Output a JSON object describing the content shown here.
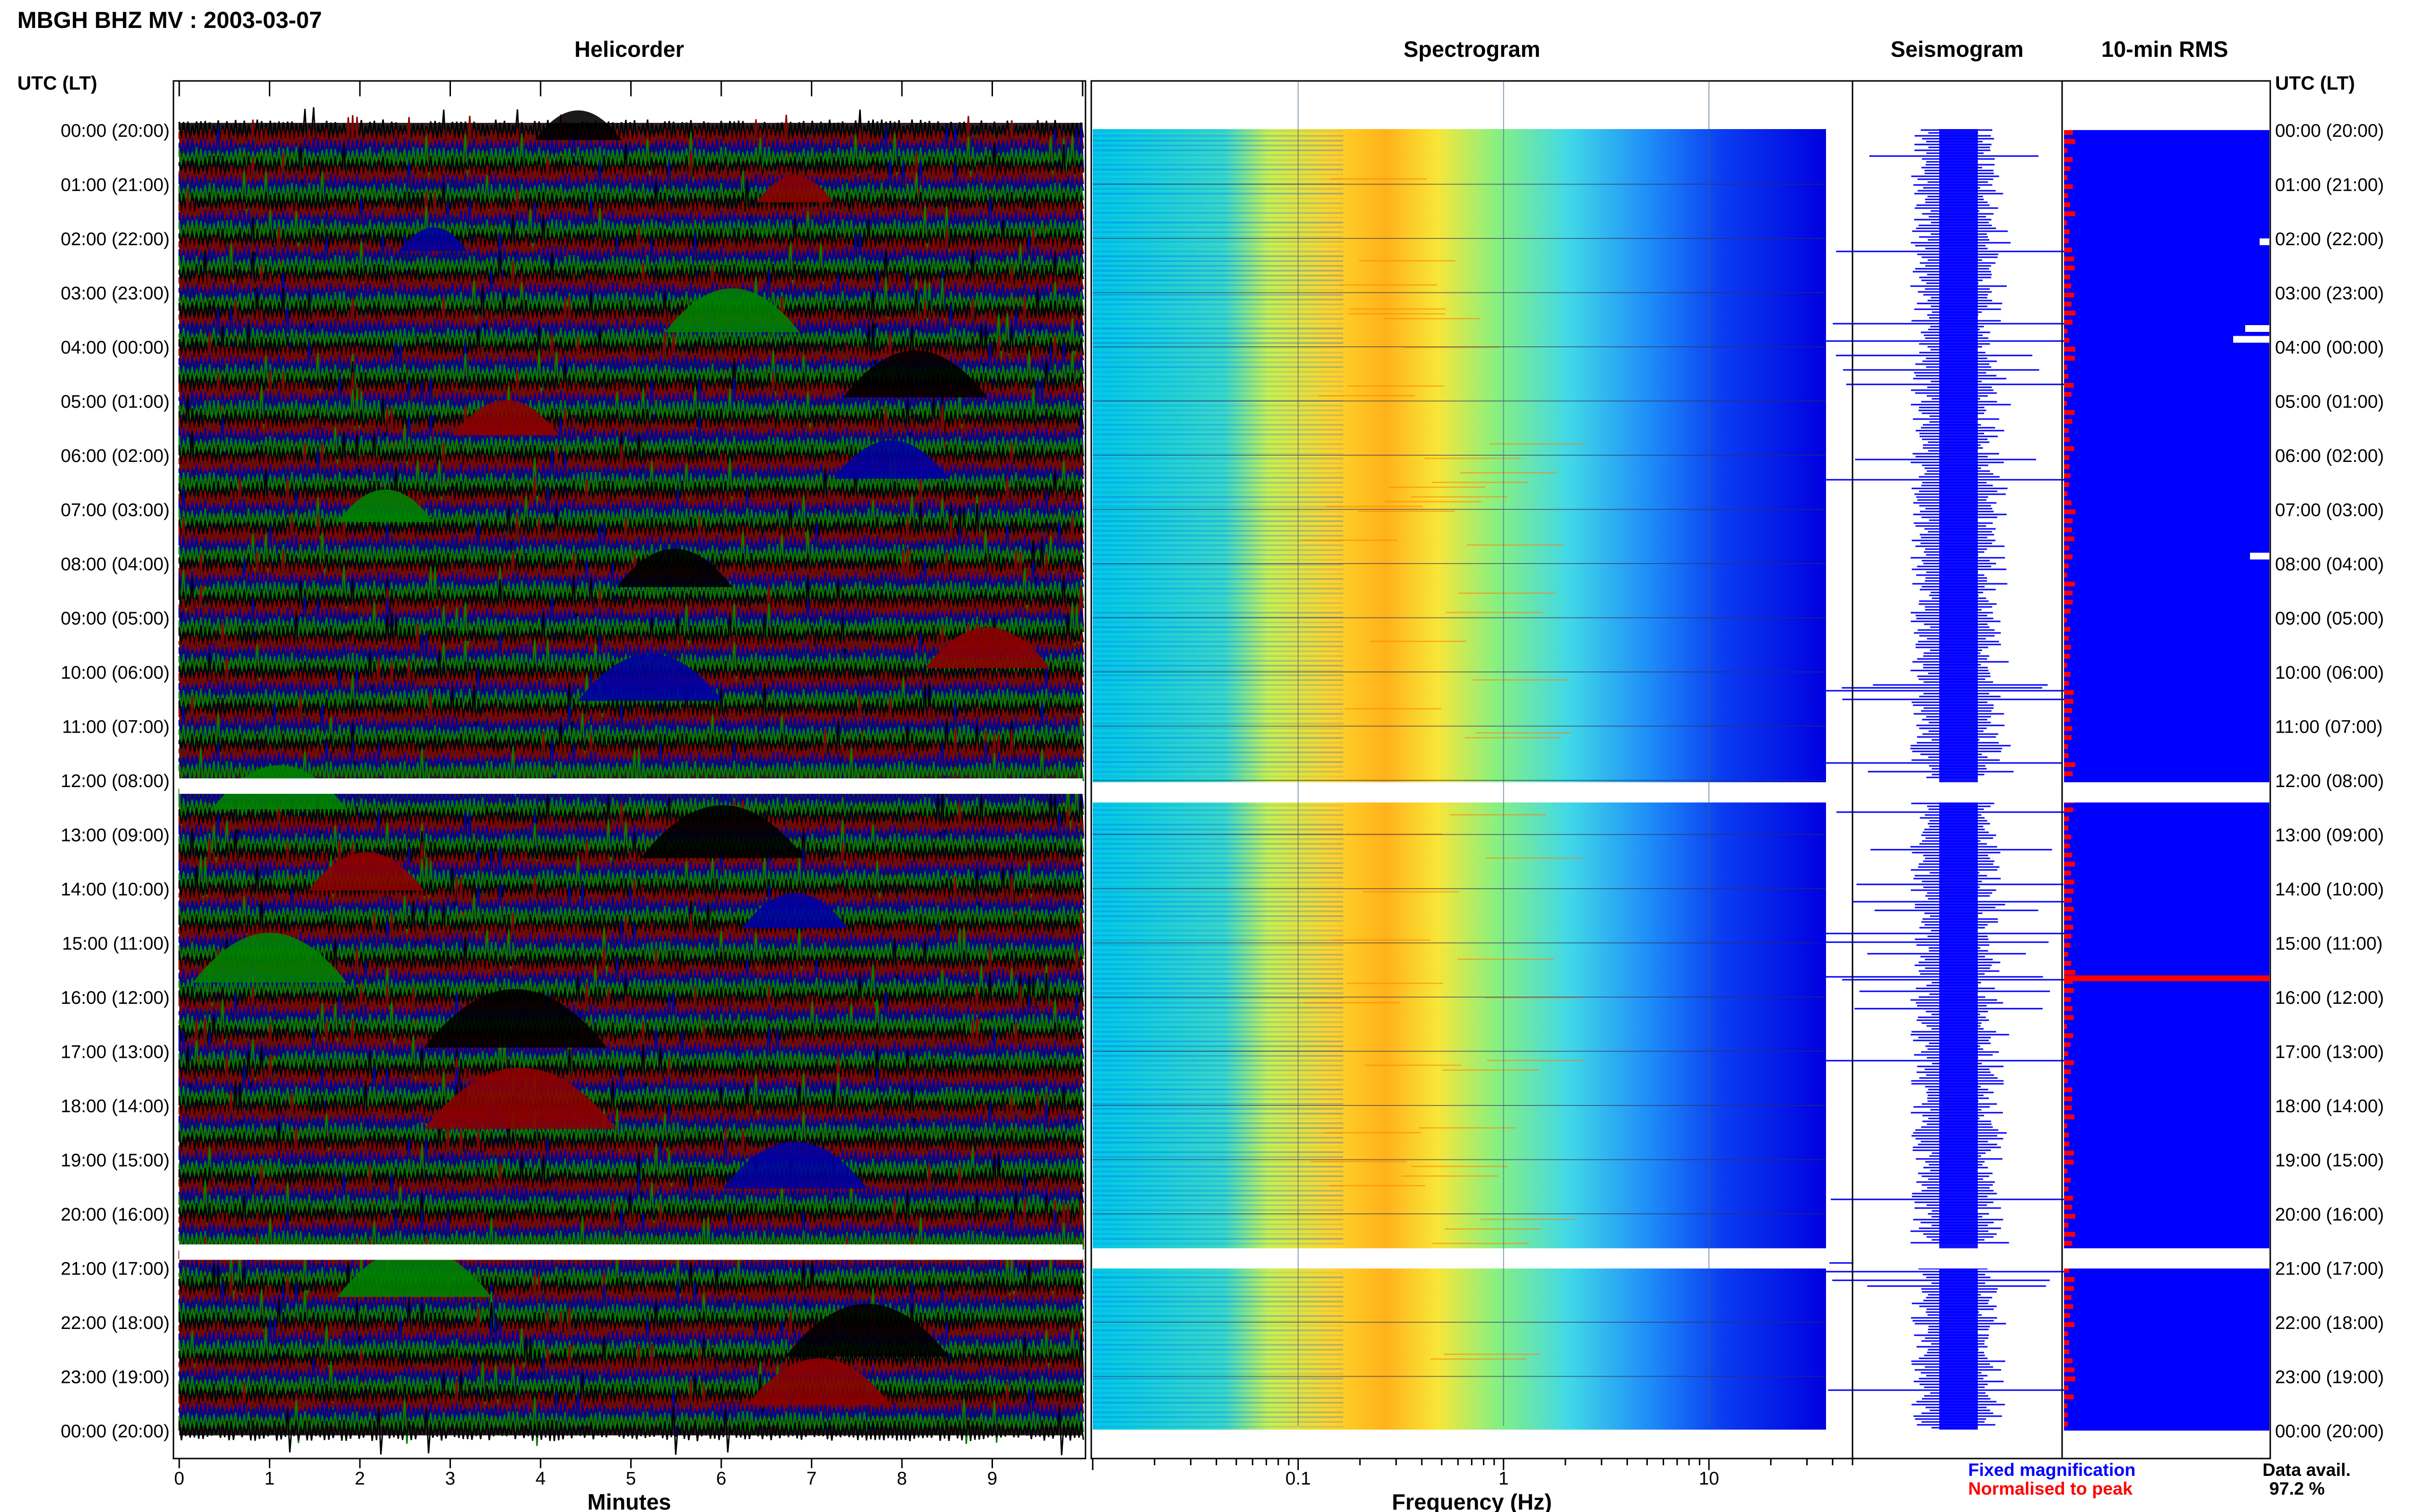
{
  "title": "MBGH BHZ MV : 2003-03-07",
  "panels": {
    "helicorder": "Helicorder",
    "spectrogram": "Spectrogram",
    "seismogram": "Seismogram",
    "rms": "10-min RMS"
  },
  "time_axis_label": "UTC (LT)",
  "time_labels": [
    "00:00 (20:00)",
    "01:00 (21:00)",
    "02:00 (22:00)",
    "03:00 (23:00)",
    "04:00 (00:00)",
    "05:00 (01:00)",
    "06:00 (02:00)",
    "07:00 (03:00)",
    "08:00 (04:00)",
    "09:00 (05:00)",
    "10:00 (06:00)",
    "11:00 (07:00)",
    "12:00 (08:00)",
    "13:00 (09:00)",
    "14:00 (10:00)",
    "15:00 (11:00)",
    "16:00 (12:00)",
    "17:00 (13:00)",
    "18:00 (14:00)",
    "19:00 (15:00)",
    "20:00 (16:00)",
    "21:00 (17:00)",
    "22:00 (18:00)",
    "23:00 (19:00)",
    "00:00 (20:00)"
  ],
  "legend": {
    "fixed": "Fixed magnification",
    "normalised": "Normalised to peak",
    "fixed_color": "#0000ff",
    "normalised_color": "#ff0000"
  },
  "data_avail": {
    "label": "Data avail.",
    "value": "97.2 %"
  },
  "colors": {
    "helicorder_traces": [
      "#000000",
      "#8b0000",
      "#0000a0",
      "#008000"
    ],
    "spec_low": "#0000ff",
    "spec_mid": "#00ffff",
    "spec_high": "#ffff00",
    "spec_peak": "#ff0000",
    "rms_fill": "#0000ff",
    "rms_norm": "#ff0000"
  },
  "chart_data": [
    {
      "type": "line",
      "panel": "helicorder",
      "xlabel": "Minutes",
      "xticks": [
        0,
        1,
        2,
        3,
        4,
        5,
        6,
        7,
        8,
        9
      ],
      "xlim": [
        0,
        10
      ],
      "traces_per_hour": 6,
      "gaps_utc_hours": [
        12,
        20.6
      ]
    },
    {
      "type": "heatmap",
      "panel": "spectrogram",
      "xlabel": "Frequency (Hz)",
      "xscale": "log",
      "xticks": [
        0.1,
        1,
        10
      ],
      "xtick_labels": [
        "0.1",
        "1",
        "10"
      ],
      "xlim": [
        0.01,
        50
      ],
      "peak_band_hz": [
        0.15,
        0.5
      ],
      "gaps_utc_hours": [
        12,
        20.6
      ]
    },
    {
      "type": "line",
      "panel": "seismogram",
      "gaps_utc_hours": [
        12,
        20.6
      ]
    },
    {
      "type": "bar",
      "panel": "rms",
      "interval_min": 10,
      "gaps_utc_hours": [
        12,
        20.6
      ]
    }
  ]
}
